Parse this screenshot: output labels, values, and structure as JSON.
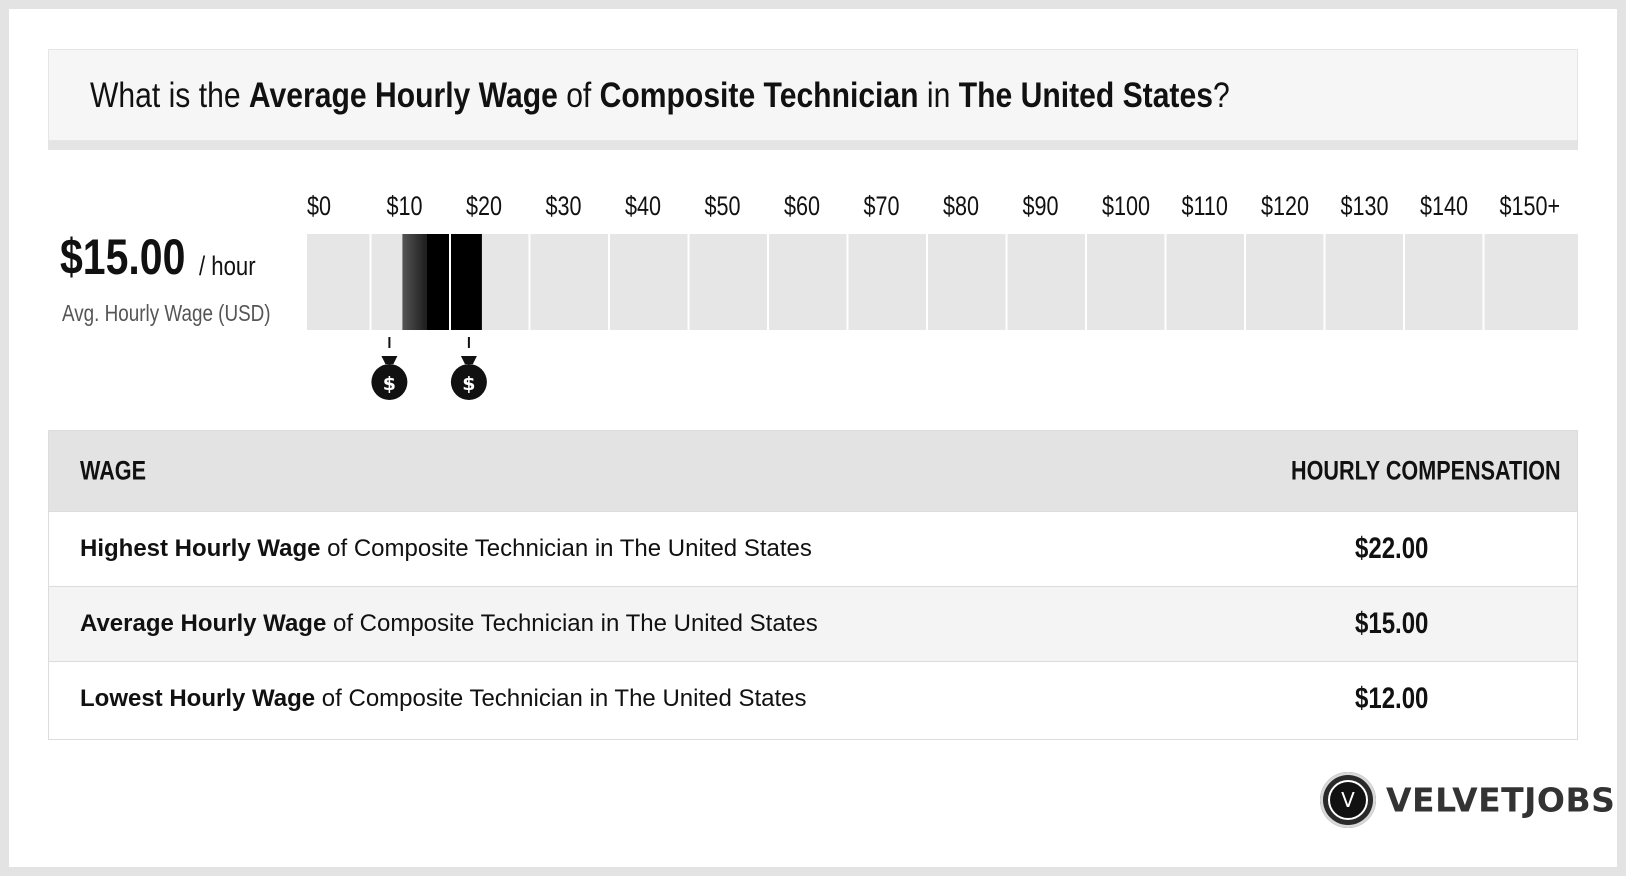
{
  "title": {
    "prefix": "What is the ",
    "metric": "Average Hourly Wage",
    "of": " of ",
    "job": "Composite Technician",
    "in": " in ",
    "location": "The United States",
    "suffix": "?"
  },
  "summary": {
    "value": "$15.00",
    "unit": "/ hour",
    "label": "Avg. Hourly Wage (USD)"
  },
  "chart_data": {
    "type": "bar",
    "x_ticks": [
      "$0",
      "$10",
      "$20",
      "$30",
      "$40",
      "$50",
      "$60",
      "$70",
      "$80",
      "$90",
      "$100",
      "$110",
      "$120",
      "$130",
      "$140",
      "$150+"
    ],
    "xlim": [
      0,
      150
    ],
    "range": {
      "low": 12,
      "average": 15,
      "high": 22
    },
    "markers": [
      {
        "value": 12,
        "icon": "money-bag-icon",
        "glyph": "$"
      },
      {
        "value": 22,
        "icon": "money-bag-icon",
        "glyph": "$"
      }
    ],
    "colors": {
      "track": "#e6e6e6",
      "low_fill": "#555555",
      "avg_fill": "#1e1e1e",
      "high_fill": "#000000"
    }
  },
  "table": {
    "headers": {
      "wage": "WAGE",
      "compensation": "HOURLY COMPENSATION"
    },
    "rows": [
      {
        "bold": "Highest Hourly Wage",
        "rest": " of Composite Technician in The United States",
        "value": "$22.00"
      },
      {
        "bold": "Average Hourly Wage",
        "rest": " of Composite Technician in The United States",
        "value": "$15.00"
      },
      {
        "bold": "Lowest Hourly Wage",
        "rest": " of Composite Technician in The United States",
        "value": "$12.00"
      }
    ]
  },
  "logo": {
    "mark": "V",
    "text": "VELVETJOBS"
  }
}
